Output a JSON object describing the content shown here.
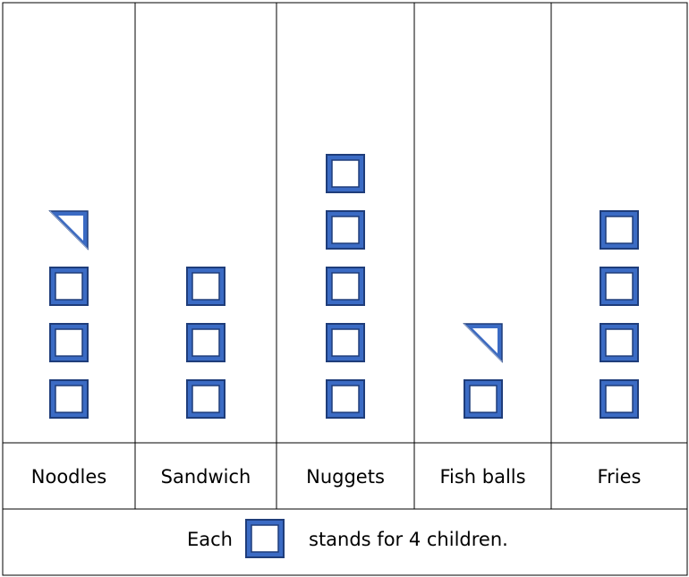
{
  "chart_data": {
    "type": "pictograph",
    "categories": [
      "Noodles",
      "Sandwich",
      "Nuggets",
      "Fish balls",
      "Fries"
    ],
    "icons": [
      3.5,
      3,
      5,
      1.5,
      4
    ],
    "values": [
      14,
      12,
      20,
      6,
      16
    ],
    "unit": 4,
    "icon": "square-icon",
    "icon_color": "#3b6bc4",
    "icon_border_color": "#1f3d7a",
    "key": {
      "prefix": "Each",
      "suffix": "stands for 4 children."
    }
  }
}
